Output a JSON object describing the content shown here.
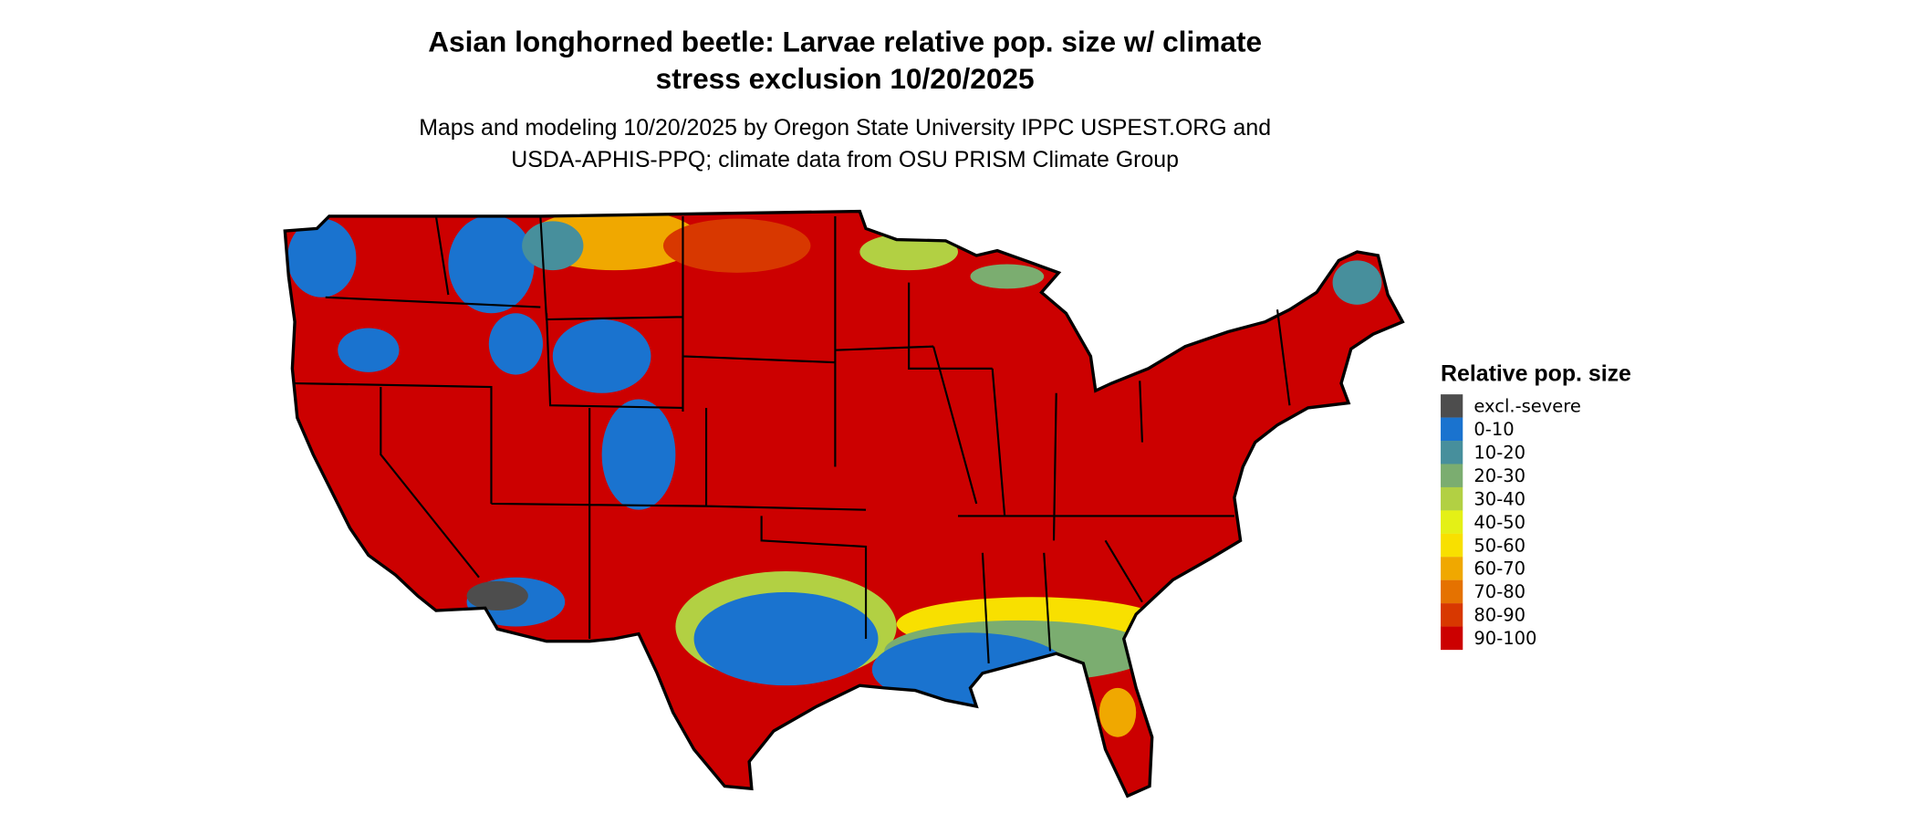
{
  "title": {
    "line1": "Asian longhorned beetle: Larvae relative pop. size w/ climate",
    "line2": "stress exclusion 10/20/2025"
  },
  "subtitle": {
    "line1": "Maps and modeling 10/20/2025 by Oregon State University IPPC USPEST.ORG and",
    "line2": "USDA-APHIS-PPQ; climate data from OSU PRISM Climate Group"
  },
  "map": {
    "region": "Contiguous United States",
    "dominant_class": "90-100"
  },
  "legend": {
    "title": "Relative pop. size",
    "items": [
      {
        "label": "excl.-severe",
        "color": "#4d4d4d"
      },
      {
        "label": "0-10",
        "color": "#1a73cf"
      },
      {
        "label": "10-20",
        "color": "#478f9c"
      },
      {
        "label": "20-30",
        "color": "#7bad70"
      },
      {
        "label": "30-40",
        "color": "#b2d043"
      },
      {
        "label": "40-50",
        "color": "#e4f016"
      },
      {
        "label": "50-60",
        "color": "#f8e000"
      },
      {
        "label": "60-70",
        "color": "#f0a800"
      },
      {
        "label": "70-80",
        "color": "#e57200"
      },
      {
        "label": "80-90",
        "color": "#d83800"
      },
      {
        "label": "90-100",
        "color": "#cc0000"
      }
    ]
  }
}
